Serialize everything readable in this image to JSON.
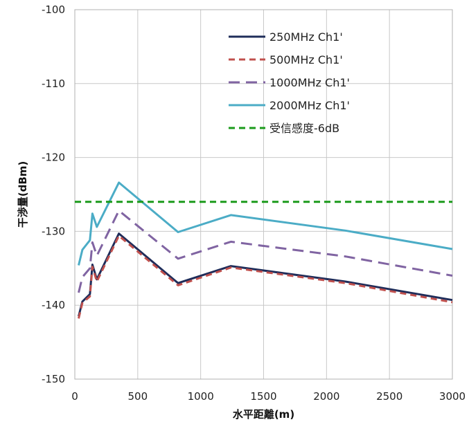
{
  "chart_data": {
    "type": "line",
    "xlabel": "水平距離(m)",
    "ylabel": "干渉量(dBm)",
    "xlim": [
      0,
      3000
    ],
    "ylim": [
      -150,
      -100
    ],
    "xticks": [
      0,
      500,
      1000,
      1500,
      2000,
      2500,
      3000
    ],
    "yticks": [
      -100,
      -110,
      -120,
      -130,
      -140,
      -150
    ],
    "grid": true,
    "legend_position": "top-right",
    "series": [
      {
        "name": "250MHz Ch1'",
        "color": "#1f2d5a",
        "dash": "solid",
        "x": [
          30,
          60,
          120,
          140,
          175,
          350,
          820,
          1240,
          2150,
          3000
        ],
        "y": [
          -141.5,
          -139.5,
          -138.5,
          -134.5,
          -136.5,
          -130.3,
          -137.0,
          -134.7,
          -136.8,
          -139.3
        ]
      },
      {
        "name": "500MHz Ch1'",
        "color": "#c0504d",
        "dash": "dashed",
        "x": [
          30,
          60,
          120,
          140,
          175,
          350,
          820,
          1240,
          2150,
          3000
        ],
        "y": [
          -141.8,
          -139.7,
          -138.8,
          -134.8,
          -136.8,
          -130.6,
          -137.3,
          -134.9,
          -137.0,
          -139.6
        ]
      },
      {
        "name": "1000MHz Ch1'",
        "color": "#8064a2",
        "dash": "longdash",
        "x": [
          30,
          60,
          120,
          140,
          175,
          350,
          820,
          1240,
          2150,
          3000
        ],
        "y": [
          -138.3,
          -136.2,
          -135.0,
          -131.5,
          -133.3,
          -127.2,
          -133.7,
          -131.4,
          -133.4,
          -136.0
        ]
      },
      {
        "name": "2000MHz Ch1'",
        "color": "#4bacc6",
        "dash": "solid",
        "x": [
          30,
          60,
          120,
          140,
          175,
          350,
          820,
          1240,
          2150,
          3000
        ],
        "y": [
          -134.6,
          -132.5,
          -131.2,
          -127.6,
          -129.4,
          -123.4,
          -130.1,
          -127.8,
          -129.9,
          -132.4
        ]
      },
      {
        "name": "受信感度-6dB",
        "color": "#1a9a1a",
        "dash": "dashed",
        "x": [
          0,
          3000
        ],
        "y": [
          -126.0,
          -126.0
        ]
      }
    ]
  }
}
